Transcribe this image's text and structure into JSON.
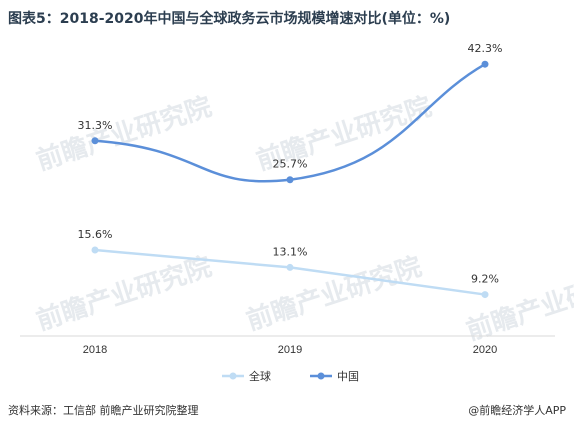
{
  "title": "图表5：2018-2020年中国与全球政务云市场规模增速对比(单位：%)",
  "source": "资料来源：工信部 前瞻产业研究院整理",
  "watermark": "前瞻产业研究院",
  "brand": "@前瞻经济学人APP",
  "chart_data": {
    "type": "line",
    "categories": [
      "2018",
      "2019",
      "2020"
    ],
    "ylim": [
      0,
      45
    ],
    "grid": false,
    "legend_position": "bottom",
    "series": [
      {
        "name": "全球",
        "color": "#bfdcf4",
        "values": [
          15.6,
          13.1,
          9.2
        ],
        "labels": [
          "15.6%",
          "13.1%",
          "9.2%"
        ]
      },
      {
        "name": "中国",
        "color": "#5b8fd9",
        "values": [
          31.3,
          25.7,
          42.3
        ],
        "labels": [
          "31.3%",
          "25.7%",
          "42.3%"
        ]
      }
    ]
  }
}
